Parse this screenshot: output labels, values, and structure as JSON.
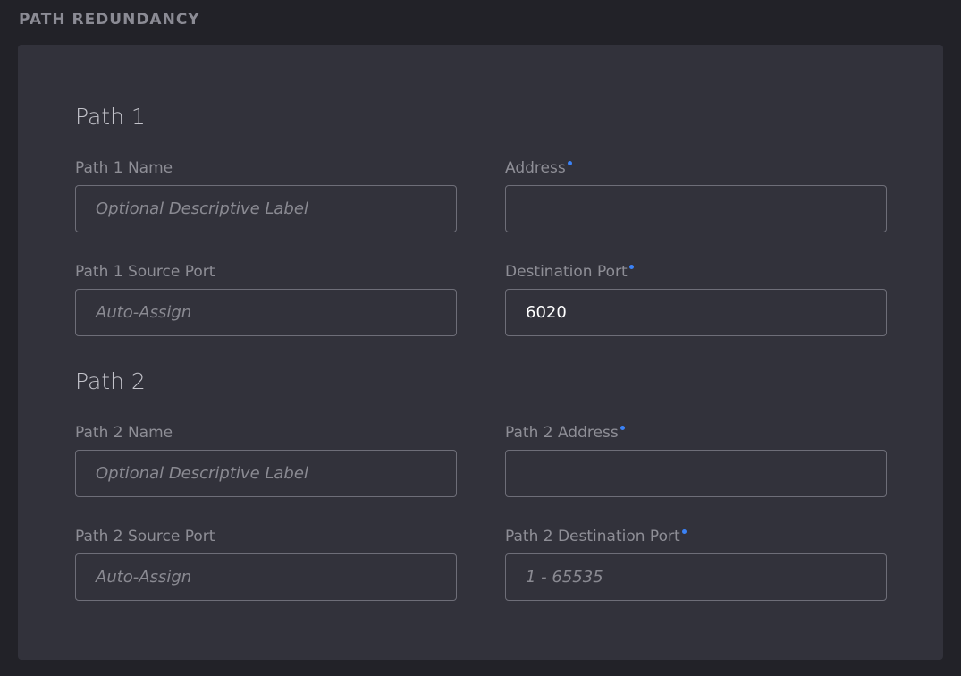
{
  "section_title": "PATH REDUNDANCY",
  "colors": {
    "required_dot": "#3b82f6",
    "panel": "#32323b",
    "background": "#222228"
  },
  "groups": [
    {
      "title": "Path 1",
      "fields": [
        {
          "label": "Path 1 Name",
          "required": false,
          "value": "",
          "placeholder": "Optional Descriptive Label"
        },
        {
          "label": "Address",
          "required": true,
          "value": "",
          "placeholder": ""
        },
        {
          "label": "Path 1 Source Port",
          "required": false,
          "value": "",
          "placeholder": "Auto-Assign"
        },
        {
          "label": "Destination Port",
          "required": true,
          "value": "6020",
          "placeholder": ""
        }
      ]
    },
    {
      "title": "Path 2",
      "fields": [
        {
          "label": "Path 2 Name",
          "required": false,
          "value": "",
          "placeholder": "Optional Descriptive Label"
        },
        {
          "label": "Path 2 Address",
          "required": true,
          "value": "",
          "placeholder": ""
        },
        {
          "label": "Path 2 Source Port",
          "required": false,
          "value": "",
          "placeholder": "Auto-Assign"
        },
        {
          "label": "Path 2 Destination Port",
          "required": true,
          "value": "",
          "placeholder": "1 - 65535"
        }
      ]
    }
  ]
}
